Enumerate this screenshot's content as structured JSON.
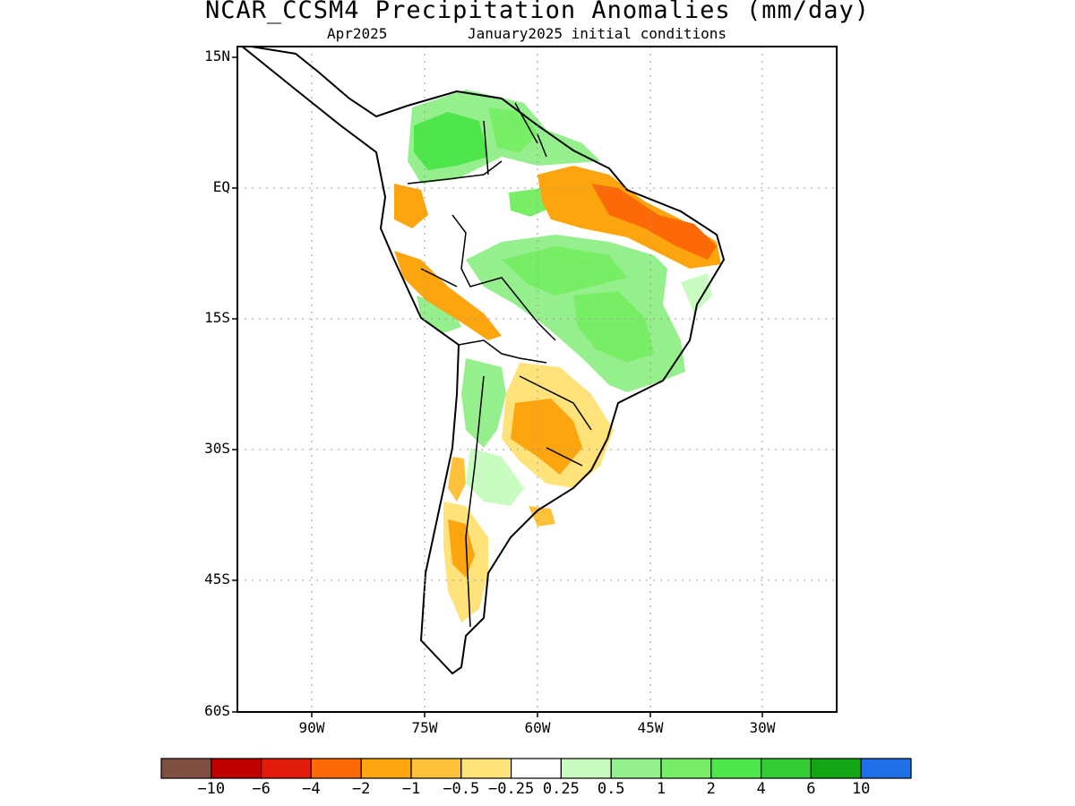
{
  "title": "NCAR_CCSM4 Precipitation Anomalies (mm/day)",
  "subtitle_left": "Apr2025",
  "subtitle_right": "January2025 initial conditions",
  "map": {
    "lat_labels": [
      "15N",
      "EQ",
      "15S",
      "30S",
      "45S",
      "60S"
    ],
    "lon_labels": [
      "90W",
      "75W",
      "60W",
      "45W",
      "30W"
    ]
  },
  "colorbar": {
    "colors": [
      "#7f4f3f",
      "#c00000",
      "#e21c0c",
      "#fc6a08",
      "#fca50e",
      "#fdc23a",
      "#ffe27a",
      "#ffffff",
      "#c8fcc0",
      "#95ef8c",
      "#77ee66",
      "#4fe64c",
      "#34cc34",
      "#13a513",
      "#1f6fe8"
    ],
    "labels": [
      "−10",
      "−6",
      "−4",
      "−2",
      "−1",
      "−0.5",
      "−0.25",
      "0.25",
      "0.5",
      "1",
      "2",
      "4",
      "6",
      "10"
    ]
  }
}
